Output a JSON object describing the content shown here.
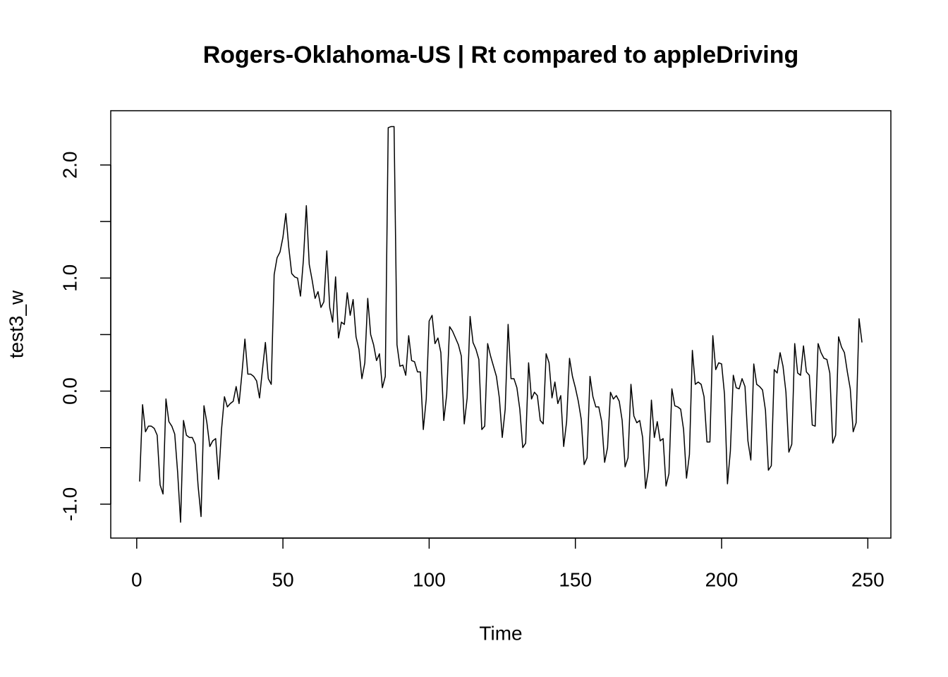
{
  "chart_data": {
    "type": "line",
    "title": "Rogers-Oklahoma-US | Rt compared to appleDriving",
    "x_label": "Time",
    "y_label": "test3_w",
    "x": [
      1,
      2,
      3,
      4,
      5,
      6,
      7,
      8,
      9,
      10,
      11,
      12,
      13,
      14,
      15,
      16,
      17,
      18,
      19,
      20,
      21,
      22,
      23,
      24,
      25,
      26,
      27,
      28,
      29,
      30,
      31,
      32,
      33,
      34,
      35,
      36,
      37,
      38,
      39,
      40,
      41,
      42,
      43,
      44,
      45,
      46,
      47,
      48,
      49,
      50,
      51,
      52,
      53,
      54,
      55,
      56,
      57,
      58,
      59,
      60,
      61,
      62,
      63,
      64,
      65,
      66,
      67,
      68,
      69,
      70,
      71,
      72,
      73,
      74,
      75,
      76,
      77,
      78,
      79,
      80,
      81,
      82,
      83,
      84,
      85,
      86,
      87,
      88,
      89,
      90,
      91,
      92,
      93,
      94,
      95,
      96,
      97,
      98,
      99,
      100,
      101,
      102,
      103,
      104,
      105,
      106,
      107,
      108,
      109,
      110,
      111,
      112,
      113,
      114,
      115,
      116,
      117,
      118,
      119,
      120,
      121,
      122,
      123,
      124,
      125,
      126,
      127,
      128,
      129,
      130,
      131,
      132,
      133,
      134,
      135,
      136,
      137,
      138,
      139,
      140,
      141,
      142,
      143,
      144,
      145,
      146,
      147,
      148,
      149,
      150,
      151,
      152,
      153,
      154,
      155,
      156,
      157,
      158,
      159,
      160,
      161,
      162,
      163,
      164,
      165,
      166,
      167,
      168,
      169,
      170,
      171,
      172,
      173,
      174,
      175,
      176,
      177,
      178,
      179,
      180,
      181,
      182,
      183,
      184,
      185,
      186,
      187,
      188,
      189,
      190,
      191,
      192,
      193,
      194,
      195,
      196,
      197,
      198,
      199,
      200,
      201,
      202,
      203,
      204,
      205,
      206,
      207,
      208,
      209,
      210,
      211,
      212,
      213,
      214,
      215,
      216,
      217,
      218,
      219,
      220,
      221,
      222,
      223,
      224,
      225,
      226,
      227,
      228,
      229,
      230,
      231,
      232,
      233,
      234,
      235,
      236,
      237,
      238,
      239,
      240,
      241,
      242,
      243,
      244,
      245,
      246,
      247,
      248
    ],
    "series": [
      {
        "color": "#000000",
        "values": [
          -0.8,
          -0.12,
          -0.36,
          -0.31,
          -0.31,
          -0.33,
          -0.39,
          -0.83,
          -0.91,
          -0.07,
          -0.27,
          -0.31,
          -0.38,
          -0.72,
          -1.16,
          -0.26,
          -0.39,
          -0.41,
          -0.41,
          -0.47,
          -0.84,
          -1.11,
          -0.13,
          -0.28,
          -0.49,
          -0.44,
          -0.42,
          -0.78,
          -0.34,
          -0.05,
          -0.14,
          -0.11,
          -0.09,
          0.04,
          -0.11,
          0.16,
          0.46,
          0.15,
          0.15,
          0.13,
          0.09,
          -0.06,
          0.19,
          0.43,
          0.11,
          0.06,
          1.03,
          1.18,
          1.23,
          1.36,
          1.57,
          1.27,
          1.04,
          1.01,
          1.0,
          0.84,
          1.16,
          1.64,
          1.12,
          0.98,
          0.82,
          0.88,
          0.74,
          0.79,
          1.24,
          0.74,
          0.61,
          1.01,
          0.47,
          0.61,
          0.59,
          0.87,
          0.67,
          0.81,
          0.48,
          0.37,
          0.11,
          0.25,
          0.82,
          0.5,
          0.41,
          0.27,
          0.33,
          0.03,
          0.13,
          2.33,
          2.34,
          2.34,
          0.41,
          0.22,
          0.23,
          0.14,
          0.49,
          0.27,
          0.26,
          0.17,
          0.17,
          -0.34,
          -0.07,
          0.62,
          0.67,
          0.42,
          0.47,
          0.34,
          -0.26,
          -0.03,
          0.57,
          0.53,
          0.47,
          0.41,
          0.31,
          -0.29,
          -0.06,
          0.66,
          0.43,
          0.37,
          0.28,
          -0.34,
          -0.31,
          0.42,
          0.31,
          0.22,
          0.13,
          -0.06,
          -0.41,
          -0.16,
          0.59,
          0.11,
          0.11,
          0.03,
          -0.16,
          -0.5,
          -0.46,
          0.25,
          -0.07,
          -0.01,
          -0.04,
          -0.26,
          -0.29,
          0.33,
          0.25,
          -0.06,
          0.08,
          -0.11,
          -0.04,
          -0.49,
          -0.27,
          0.29,
          0.13,
          0.03,
          -0.09,
          -0.25,
          -0.65,
          -0.59,
          0.13,
          -0.05,
          -0.14,
          -0.14,
          -0.27,
          -0.63,
          -0.5,
          -0.01,
          -0.07,
          -0.04,
          -0.09,
          -0.26,
          -0.67,
          -0.59,
          0.06,
          -0.22,
          -0.28,
          -0.26,
          -0.41,
          -0.86,
          -0.69,
          -0.08,
          -0.41,
          -0.27,
          -0.44,
          -0.42,
          -0.84,
          -0.73,
          0.02,
          -0.13,
          -0.14,
          -0.16,
          -0.34,
          -0.77,
          -0.56,
          0.36,
          0.06,
          0.08,
          0.06,
          -0.05,
          -0.45,
          -0.45,
          0.49,
          0.19,
          0.25,
          0.24,
          -0.03,
          -0.82,
          -0.53,
          0.14,
          0.03,
          0.02,
          0.11,
          0.04,
          -0.44,
          -0.61,
          0.24,
          0.06,
          0.04,
          0.01,
          -0.17,
          -0.7,
          -0.66,
          0.19,
          0.16,
          0.34,
          0.22,
          -0.01,
          -0.54,
          -0.47,
          0.42,
          0.16,
          0.14,
          0.4,
          0.17,
          0.14,
          -0.3,
          -0.31,
          0.42,
          0.34,
          0.29,
          0.28,
          0.16,
          -0.46,
          -0.39,
          0.48,
          0.39,
          0.34,
          0.17,
          0.02,
          -0.36,
          -0.28,
          0.64,
          0.43
        ]
      }
    ],
    "xlim": [
      -8.88,
      257.88
    ],
    "ylim": [
      -1.3,
      2.48
    ],
    "xticks": [
      0,
      50,
      100,
      150,
      200,
      250
    ],
    "yticks": [
      {
        "value": -1,
        "label": "-1.0"
      },
      -0.5,
      {
        "value": 0,
        "label": "0.0"
      },
      0.5,
      {
        "value": 1,
        "label": "1.0"
      },
      1.5,
      {
        "value": 2,
        "label": "2.0"
      }
    ]
  }
}
